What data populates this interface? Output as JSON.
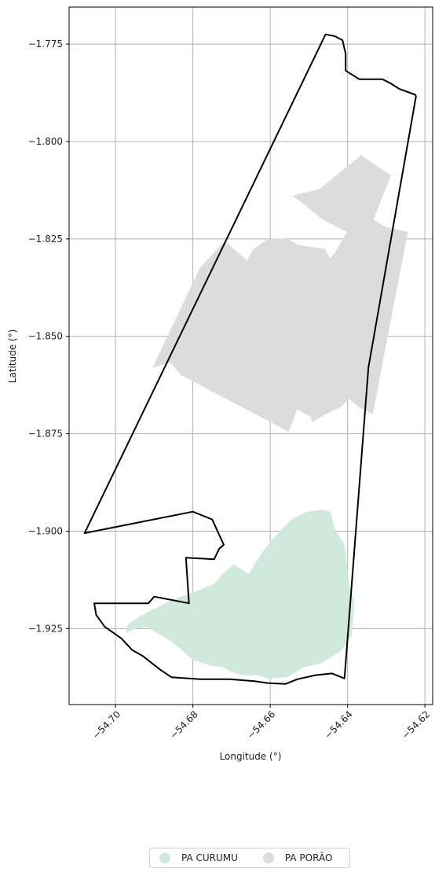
{
  "chart_data": {
    "type": "map",
    "xlabel": "Longitude (°)",
    "ylabel": "Latitude (°)",
    "xlim": [
      -54.712,
      -54.618
    ],
    "ylim": [
      -1.9445,
      -1.7655
    ],
    "grid": true,
    "x_ticks": [
      {
        "value": -54.7,
        "label": "−54.70"
      },
      {
        "value": -54.68,
        "label": "−54.68"
      },
      {
        "value": -54.66,
        "label": "−54.66"
      },
      {
        "value": -54.64,
        "label": "−54.64"
      },
      {
        "value": -54.62,
        "label": "−54.62"
      }
    ],
    "y_ticks": [
      {
        "value": -1.775,
        "label": "−1.775"
      },
      {
        "value": -1.8,
        "label": "−1.800"
      },
      {
        "value": -1.825,
        "label": "−1.825"
      },
      {
        "value": -1.85,
        "label": "−1.850"
      },
      {
        "value": -1.875,
        "label": "−1.875"
      },
      {
        "value": -1.9,
        "label": "−1.900"
      },
      {
        "value": -1.925,
        "label": "−1.925"
      }
    ],
    "layers": [
      {
        "name": "PA PORÃO",
        "color": "#dcdcdc",
        "kind": "fill",
        "coordinates": [
          [
            -54.6365,
            -1.8035
          ],
          [
            -54.6288,
            -1.8087
          ],
          [
            -54.6333,
            -1.82
          ],
          [
            -54.6305,
            -1.8218
          ],
          [
            -54.6244,
            -1.8232
          ],
          [
            -54.6335,
            -1.87
          ],
          [
            -54.637,
            -1.8682
          ],
          [
            -54.6397,
            -1.866
          ],
          [
            -54.6415,
            -1.868
          ],
          [
            -54.6447,
            -1.8695
          ],
          [
            -54.6492,
            -1.872
          ],
          [
            -54.6495,
            -1.8707
          ],
          [
            -54.653,
            -1.8688
          ],
          [
            -54.6552,
            -1.8745
          ],
          [
            -54.658,
            -1.873
          ],
          [
            -54.683,
            -1.86
          ],
          [
            -54.6857,
            -1.8568
          ],
          [
            -54.6904,
            -1.858
          ],
          [
            -54.6782,
            -1.8325
          ],
          [
            -54.6718,
            -1.8255
          ],
          [
            -54.666,
            -1.8305
          ],
          [
            -54.6645,
            -1.8277
          ],
          [
            -54.6605,
            -1.825
          ],
          [
            -54.656,
            -1.8249
          ],
          [
            -54.6525,
            -1.8266
          ],
          [
            -54.646,
            -1.8275
          ],
          [
            -54.6445,
            -1.83
          ],
          [
            -54.6432,
            -1.8285
          ],
          [
            -54.6407,
            -1.824
          ],
          [
            -54.636,
            -1.82
          ],
          [
            -54.6338,
            -1.8208
          ],
          [
            -54.6388,
            -1.8238
          ],
          [
            -54.6413,
            -1.8227
          ],
          [
            -54.6465,
            -1.82
          ],
          [
            -54.652,
            -1.8155
          ],
          [
            -54.6542,
            -1.814
          ],
          [
            -54.6525,
            -1.8134
          ],
          [
            -54.649,
            -1.8127
          ],
          [
            -54.647,
            -1.812
          ]
        ]
      },
      {
        "name": "PA CURUMU",
        "color": "#cfeadd",
        "kind": "fill",
        "coordinates": [
          [
            -54.6445,
            -1.895
          ],
          [
            -54.6432,
            -1.8997
          ],
          [
            -54.6408,
            -1.9033
          ],
          [
            -54.64,
            -1.91
          ],
          [
            -54.6395,
            -1.914
          ],
          [
            -54.6382,
            -1.918
          ],
          [
            -54.6385,
            -1.922
          ],
          [
            -54.639,
            -1.927
          ],
          [
            -54.642,
            -1.931
          ],
          [
            -54.647,
            -1.934
          ],
          [
            -54.6515,
            -1.935
          ],
          [
            -54.6555,
            -1.9375
          ],
          [
            -54.6605,
            -1.9378
          ],
          [
            -54.6632,
            -1.937
          ],
          [
            -54.667,
            -1.937
          ],
          [
            -54.6705,
            -1.936
          ],
          [
            -54.672,
            -1.935
          ],
          [
            -54.6755,
            -1.9345
          ],
          [
            -54.68,
            -1.933
          ],
          [
            -54.6835,
            -1.93
          ],
          [
            -54.686,
            -1.928
          ],
          [
            -54.6895,
            -1.926
          ],
          [
            -54.692,
            -1.9245
          ],
          [
            -54.6945,
            -1.925
          ],
          [
            -54.6975,
            -1.926
          ],
          [
            -54.6968,
            -1.924
          ],
          [
            -54.694,
            -1.922
          ],
          [
            -54.69,
            -1.92
          ],
          [
            -54.685,
            -1.9175
          ],
          [
            -54.678,
            -1.915
          ],
          [
            -54.6745,
            -1.9135
          ],
          [
            -54.6718,
            -1.9105
          ],
          [
            -54.6695,
            -1.9085
          ],
          [
            -54.6655,
            -1.911
          ],
          [
            -54.6622,
            -1.9055
          ],
          [
            -54.658,
            -1.9005
          ],
          [
            -54.6545,
            -1.897
          ],
          [
            -54.6505,
            -1.895
          ],
          [
            -54.6465,
            -1.8945
          ]
        ]
      },
      {
        "name": "boundary",
        "color": "#000000",
        "kind": "outline",
        "coordinates": [
          [
            -54.6457,
            -1.7725
          ],
          [
            -54.6432,
            -1.773
          ],
          [
            -54.6413,
            -1.774
          ],
          [
            -54.6405,
            -1.7775
          ],
          [
            -54.6405,
            -1.7818
          ],
          [
            -54.637,
            -1.784
          ],
          [
            -54.6345,
            -1.784
          ],
          [
            -54.631,
            -1.784
          ],
          [
            -54.629,
            -1.785
          ],
          [
            -54.6266,
            -1.7865
          ],
          [
            -54.6225,
            -1.788
          ],
          [
            -54.6223,
            -1.7884
          ],
          [
            -54.6346,
            -1.858
          ],
          [
            -54.6408,
            -1.9378
          ],
          [
            -54.644,
            -1.9365
          ],
          [
            -54.6485,
            -1.937
          ],
          [
            -54.653,
            -1.938
          ],
          [
            -54.656,
            -1.9392
          ],
          [
            -54.6605,
            -1.939
          ],
          [
            -54.664,
            -1.9385
          ],
          [
            -54.6705,
            -1.938
          ],
          [
            -54.6745,
            -1.938
          ],
          [
            -54.678,
            -1.938
          ],
          [
            -54.681,
            -1.9378
          ],
          [
            -54.6855,
            -1.9375
          ],
          [
            -54.6885,
            -1.9355
          ],
          [
            -54.693,
            -1.932
          ],
          [
            -54.6957,
            -1.9305
          ],
          [
            -54.6985,
            -1.9275
          ],
          [
            -54.7028,
            -1.9245
          ],
          [
            -54.705,
            -1.9215
          ],
          [
            -54.7055,
            -1.9185
          ],
          [
            -54.6915,
            -1.9185
          ],
          [
            -54.69,
            -1.9168
          ],
          [
            -54.681,
            -1.9185
          ],
          [
            -54.6818,
            -1.9068
          ],
          [
            -54.6745,
            -1.9072
          ],
          [
            -54.6732,
            -1.9045
          ],
          [
            -54.672,
            -1.9035
          ],
          [
            -54.675,
            -1.897
          ],
          [
            -54.68,
            -1.895
          ],
          [
            -54.708,
            -1.9005
          ],
          [
            -54.6457,
            -1.7725
          ]
        ]
      }
    ]
  },
  "legend": {
    "items": [
      {
        "label": "PA CURUMU",
        "color": "#cfeadd"
      },
      {
        "label": "PA PORÃO",
        "color": "#dcdcdc"
      }
    ]
  },
  "colors": {
    "grid": "#b0b0b0",
    "axis": "#000000",
    "boundary": "#000000"
  }
}
